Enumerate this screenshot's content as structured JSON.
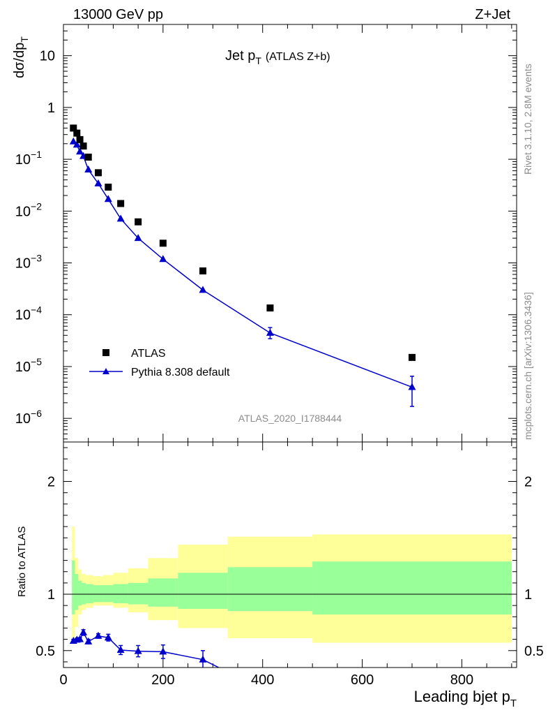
{
  "header": {
    "left": "13000 GeV pp",
    "right": "Z+Jet"
  },
  "side_labels": {
    "rivet": "Rivet 3.1.10,  2.8M events",
    "mcplots": "mcplots.cern.ch [arXiv:1306.3436]"
  },
  "watermark": "ATLAS_2020_I1788444",
  "colors": {
    "mc": "#0000cc",
    "band_inner": "#99ff99",
    "band_outer": "#ffff99",
    "data": "#000000"
  },
  "chart_data": [
    {
      "type": "scatter",
      "title_main": "Jet p",
      "title_sub": "T",
      "title_extra": "(ATLAS Z+b)",
      "ylabel_main": "dσ/dp",
      "ylabel_sub": "T",
      "xlim": [
        0,
        910
      ],
      "ylim": [
        3.5e-07,
        40
      ],
      "yscale": "log",
      "ytick_labels": [
        {
          "value": 10,
          "label": "10",
          "sup": ""
        },
        {
          "value": 1,
          "label": "1",
          "sup": ""
        },
        {
          "value": 0.1,
          "label": "10",
          "sup": "−1"
        },
        {
          "value": 0.01,
          "label": "10",
          "sup": "−2"
        },
        {
          "value": 0.001,
          "label": "10",
          "sup": "−3"
        },
        {
          "value": 0.0001,
          "label": "10",
          "sup": "−4"
        },
        {
          "value": 1e-05,
          "label": "10",
          "sup": "−5"
        },
        {
          "value": 1e-06,
          "label": "10",
          "sup": "−6"
        }
      ],
      "legend": {
        "placement": "bottom-left",
        "entries": [
          "ATLAS",
          "Pythia 8.308 default"
        ]
      },
      "series": [
        {
          "name": "ATLAS",
          "marker": "square",
          "x": [
            20,
            27,
            33,
            40,
            50,
            70,
            90,
            115,
            150,
            200,
            280,
            415,
            700
          ],
          "y": [
            0.4,
            0.32,
            0.24,
            0.18,
            0.11,
            0.055,
            0.029,
            0.014,
            0.0062,
            0.0024,
            0.0007,
            0.000135,
            1.5e-05
          ]
        },
        {
          "name": "Pythia 8.308 default",
          "marker": "triangle",
          "x": [
            20,
            27,
            33,
            40,
            50,
            70,
            90,
            115,
            150,
            200,
            280,
            415,
            700
          ],
          "y": [
            0.22,
            0.19,
            0.14,
            0.115,
            0.063,
            0.034,
            0.017,
            0.0071,
            0.003,
            0.00118,
            0.0003,
            4.45e-05,
            4e-06
          ],
          "yerr_low": [
            0,
            0,
            0,
            0,
            0,
            0,
            0,
            0,
            0,
            0,
            0,
            1e-05,
            2.3e-06
          ],
          "yerr_high": [
            0,
            0,
            0,
            0,
            0,
            0,
            0,
            0,
            0,
            0,
            0,
            1.2e-05,
            2.5e-06
          ]
        }
      ]
    },
    {
      "type": "line",
      "ylabel": "Ratio to ATLAS",
      "xlabel_main": "Leading bjet p",
      "xlabel_sub": "T",
      "xlim": [
        0,
        910
      ],
      "ylim": [
        0.35,
        2.35
      ],
      "xticks": [
        0,
        200,
        400,
        600,
        800
      ],
      "yticks": [
        0.5,
        1,
        2
      ],
      "bands": {
        "edges": [
          17,
          23,
          30,
          37,
          45,
          60,
          80,
          100,
          130,
          170,
          230,
          330,
          500,
          900
        ],
        "inner_low": [
          0.82,
          0.86,
          0.9,
          0.91,
          0.92,
          0.93,
          0.93,
          0.92,
          0.91,
          0.89,
          0.87,
          0.85,
          0.82
        ],
        "inner_high": [
          1.3,
          1.18,
          1.12,
          1.1,
          1.09,
          1.08,
          1.08,
          1.09,
          1.1,
          1.14,
          1.19,
          1.24,
          1.29
        ],
        "outer_low": [
          0.6,
          0.71,
          0.82,
          0.86,
          0.88,
          0.9,
          0.9,
          0.88,
          0.84,
          0.77,
          0.7,
          0.61,
          0.57
        ],
        "outer_high": [
          1.6,
          1.32,
          1.22,
          1.18,
          1.17,
          1.16,
          1.17,
          1.19,
          1.23,
          1.32,
          1.44,
          1.51,
          1.53
        ]
      },
      "series": [
        {
          "name": "Pythia 8.308 default",
          "x": [
            20,
            27,
            33,
            40,
            50,
            70,
            90,
            115,
            150,
            200,
            280,
            330
          ],
          "y": [
            0.585,
            0.595,
            0.6,
            0.66,
            0.58,
            0.63,
            0.615,
            0.505,
            0.495,
            0.49,
            0.42,
            0.31
          ],
          "yerr": [
            0.015,
            0.015,
            0.015,
            0.025,
            0.02,
            0.02,
            0.03,
            0.04,
            0.05,
            0.06,
            0.08,
            0
          ]
        }
      ]
    }
  ]
}
